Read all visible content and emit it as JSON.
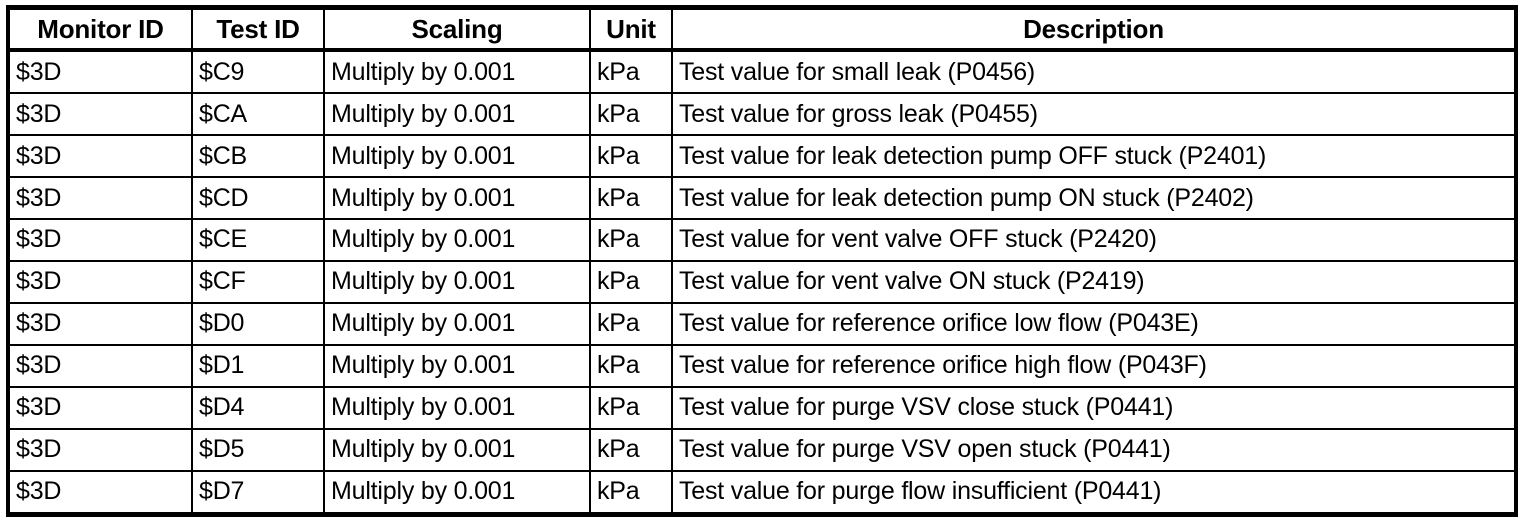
{
  "page": {
    "background_color": "#ffffff",
    "border_color": "#000000",
    "text_color": "#000000"
  },
  "table": {
    "columns": [
      "Monitor ID",
      "Test ID",
      "Scaling",
      "Unit",
      "Description"
    ],
    "rows": [
      [
        "$3D",
        "$C9",
        "Multiply by 0.001",
        "kPa",
        "Test value for small leak (P0456)"
      ],
      [
        "$3D",
        "$CA",
        "Multiply by 0.001",
        "kPa",
        "Test value for gross leak (P0455)"
      ],
      [
        "$3D",
        "$CB",
        "Multiply by 0.001",
        "kPa",
        "Test value for leak detection pump OFF stuck (P2401)"
      ],
      [
        "$3D",
        "$CD",
        "Multiply by 0.001",
        "kPa",
        "Test value for leak detection pump ON stuck (P2402)"
      ],
      [
        "$3D",
        "$CE",
        "Multiply by 0.001",
        "kPa",
        "Test value for vent valve OFF stuck (P2420)"
      ],
      [
        "$3D",
        "$CF",
        "Multiply by 0.001",
        "kPa",
        "Test value for vent valve ON stuck (P2419)"
      ],
      [
        "$3D",
        "$D0",
        "Multiply by 0.001",
        "kPa",
        "Test value for reference orifice low flow (P043E)"
      ],
      [
        "$3D",
        "$D1",
        "Multiply by 0.001",
        "kPa",
        "Test value for reference orifice high flow (P043F)"
      ],
      [
        "$3D",
        "$D4",
        "Multiply by 0.001",
        "kPa",
        "Test value for purge VSV close stuck (P0441)"
      ],
      [
        "$3D",
        "$D5",
        "Multiply by 0.001",
        "kPa",
        "Test value for purge VSV open stuck (P0441)"
      ],
      [
        "$3D",
        "$D7",
        "Multiply by 0.001",
        "kPa",
        "Test value for purge flow insufficient (P0441)"
      ]
    ]
  }
}
